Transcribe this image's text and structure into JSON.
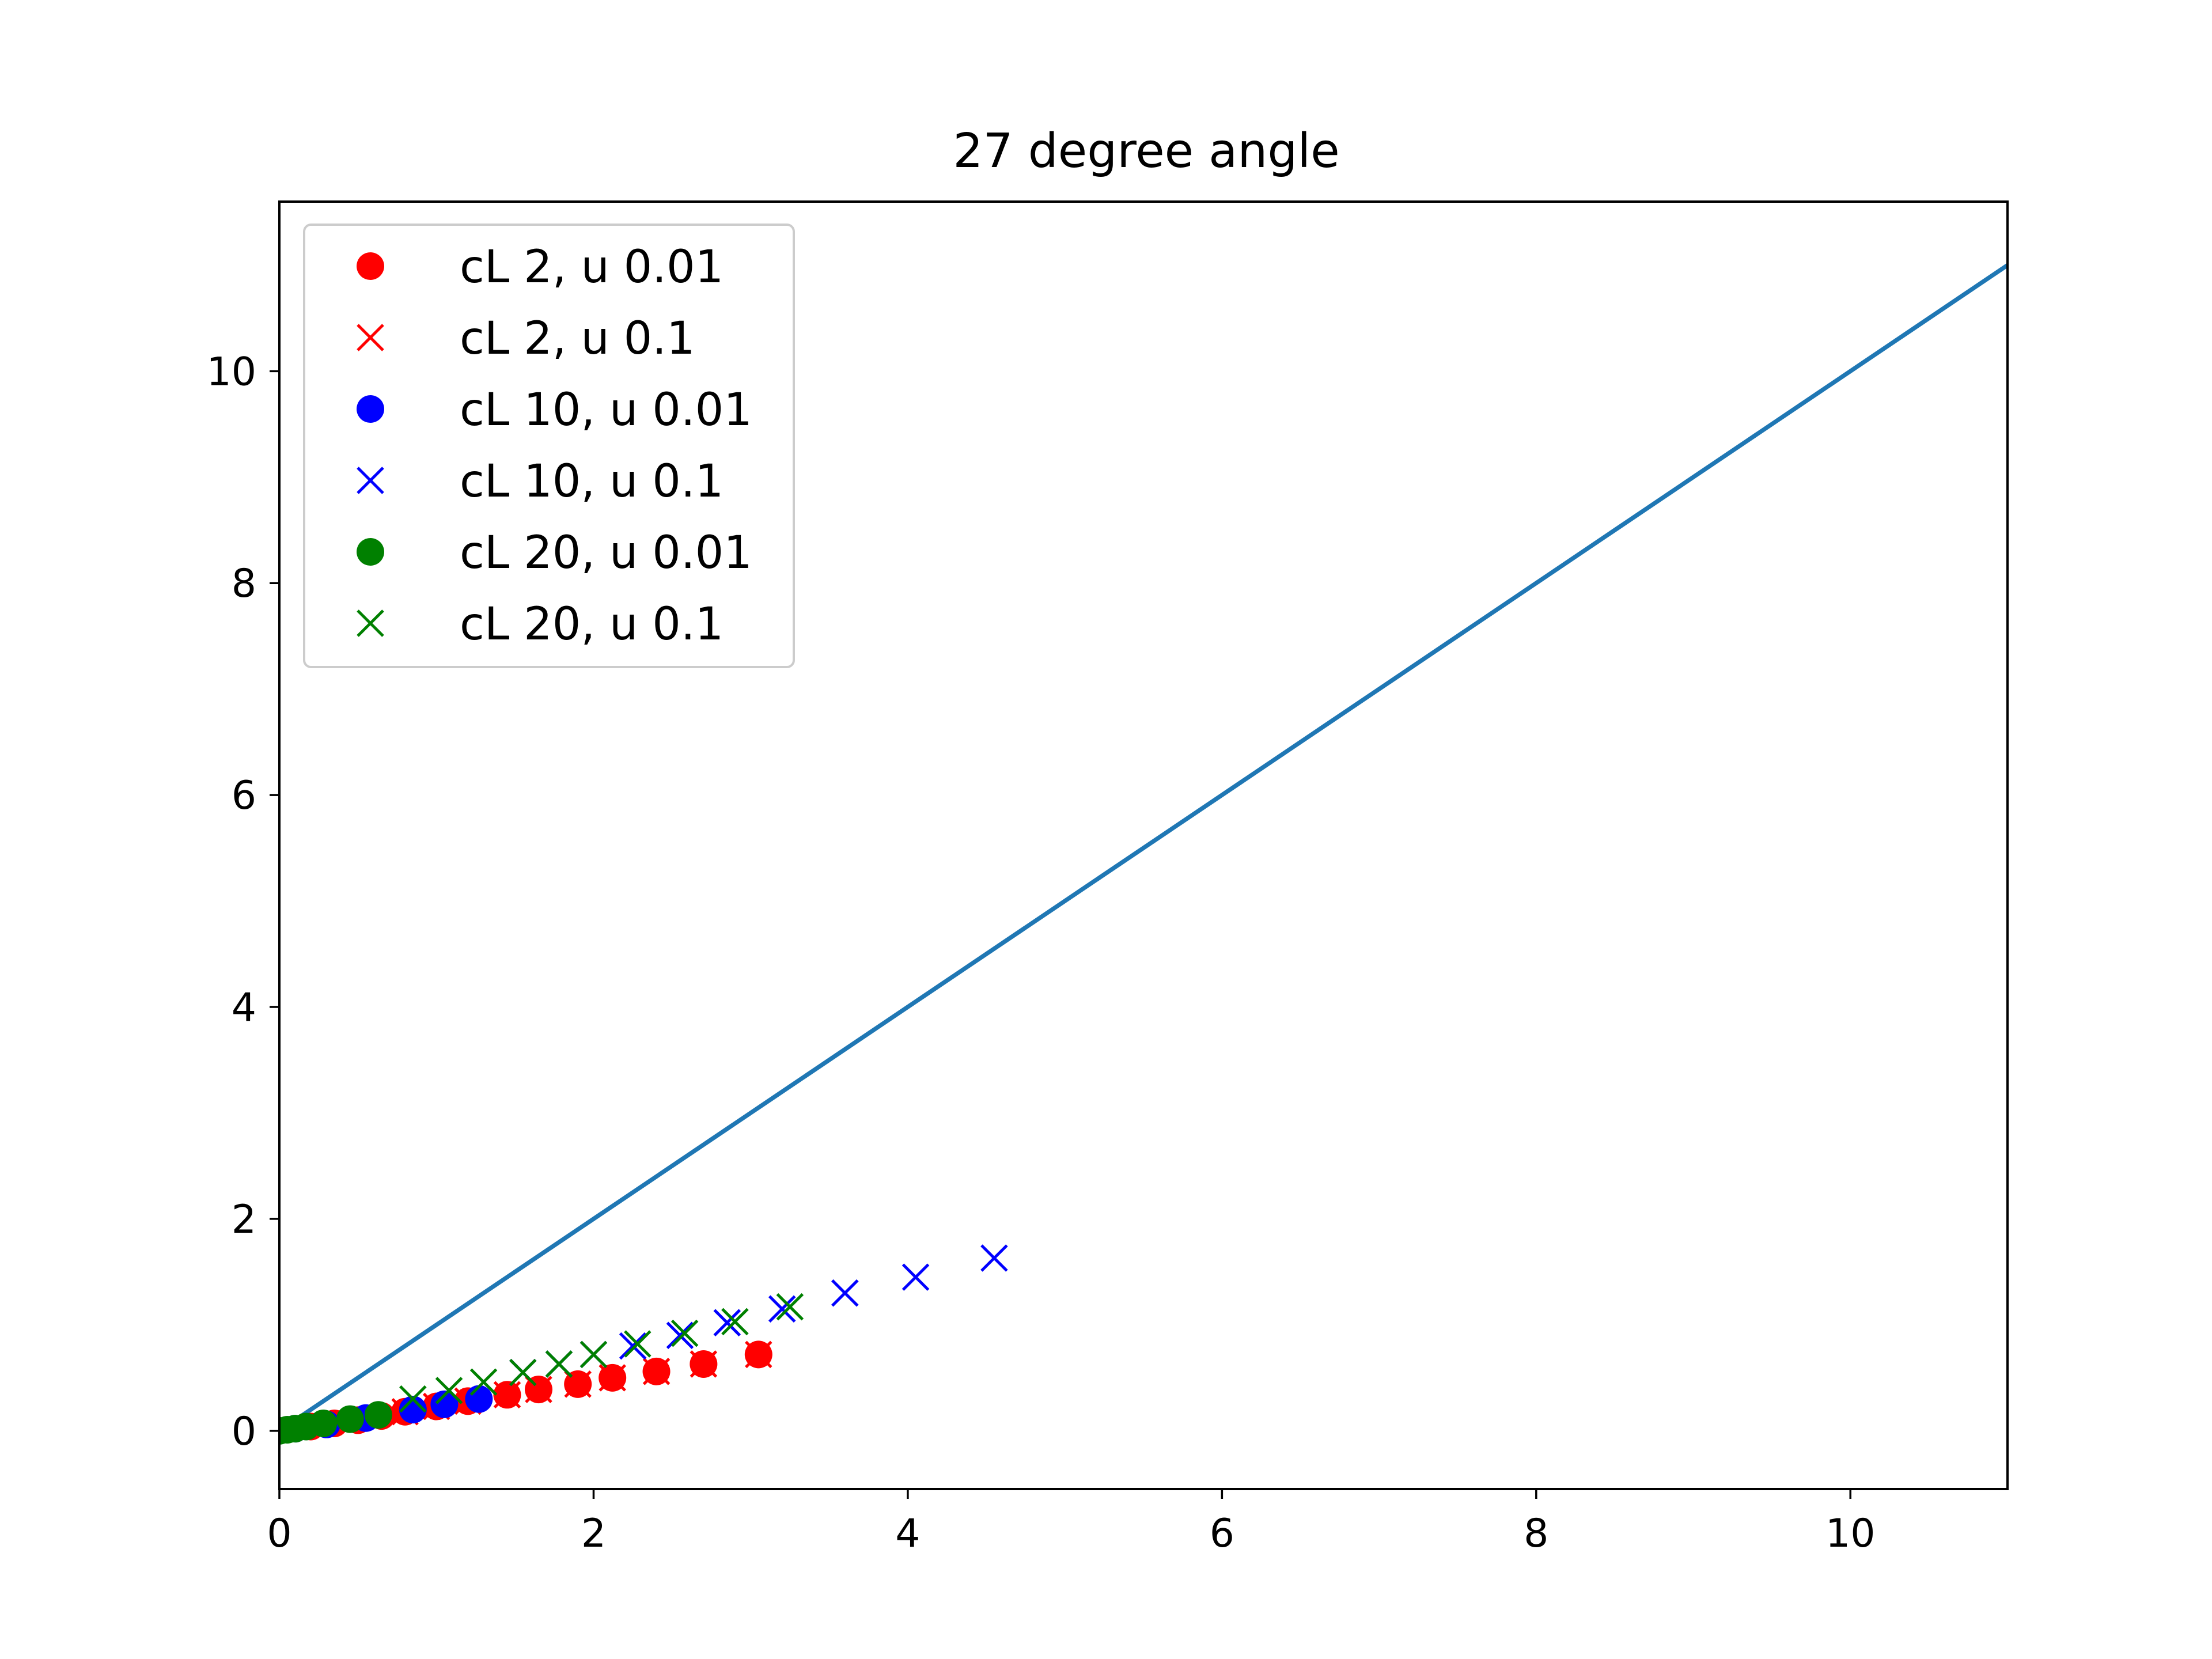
{
  "chart_data": {
    "type": "scatter",
    "title": "27 degree angle",
    "xlabel": "",
    "ylabel": "",
    "xlim": [
      0,
      11
    ],
    "ylim": [
      -0.55,
      11.6
    ],
    "xticks": [
      0,
      2,
      4,
      6,
      8,
      10
    ],
    "yticks": [
      0,
      2,
      4,
      6,
      8,
      10
    ],
    "grid": false,
    "legend_position": "upper-left",
    "reference_line": {
      "color": "#1f77b4",
      "x": [
        0,
        11
      ],
      "y": [
        0,
        11
      ]
    },
    "series": [
      {
        "name": "cL 2, u 0.01",
        "marker": "circle",
        "color": "#ff0000",
        "x": [
          0.2,
          0.35,
          0.5,
          0.65,
          0.8,
          1.0,
          1.2,
          1.45,
          1.65,
          1.9,
          2.12,
          2.4,
          2.7,
          3.05
        ],
        "y": [
          0.04,
          0.07,
          0.1,
          0.14,
          0.18,
          0.23,
          0.28,
          0.34,
          0.39,
          0.44,
          0.5,
          0.56,
          0.63,
          0.72
        ]
      },
      {
        "name": "cL 2, u 0.1",
        "marker": "x",
        "color": "#ff0000",
        "x": [
          0.8,
          1.0,
          1.2,
          1.45,
          1.65,
          1.9,
          2.12,
          2.4,
          2.7,
          3.05
        ],
        "y": [
          0.18,
          0.23,
          0.28,
          0.34,
          0.39,
          0.44,
          0.5,
          0.56,
          0.63,
          0.72
        ]
      },
      {
        "name": "cL 10, u 0.01",
        "marker": "circle",
        "color": "#0000ff",
        "x": [
          0.1,
          0.3,
          0.55,
          0.85,
          1.05,
          1.27
        ],
        "y": [
          0.02,
          0.06,
          0.12,
          0.2,
          0.25,
          0.3
        ]
      },
      {
        "name": "cL 10, u 0.1",
        "marker": "x",
        "color": "#0000ff",
        "x": [
          1.55,
          1.78,
          2.0,
          2.25,
          2.55,
          2.85,
          3.2,
          3.6,
          4.05,
          4.55
        ],
        "y": [
          0.55,
          0.63,
          0.72,
          0.8,
          0.9,
          1.02,
          1.15,
          1.3,
          1.45,
          1.63
        ]
      },
      {
        "name": "cL 20, u 0.01",
        "marker": "circle",
        "color": "#008000",
        "x": [
          0.0,
          0.05,
          0.1,
          0.17,
          0.28,
          0.45,
          0.63
        ],
        "y": [
          0.0,
          0.01,
          0.02,
          0.04,
          0.07,
          0.11,
          0.15
        ]
      },
      {
        "name": "cL 20, u 0.1",
        "marker": "x",
        "color": "#008000",
        "x": [
          0.85,
          1.08,
          1.3,
          1.55,
          1.78,
          2.0,
          2.28,
          2.58,
          2.9,
          3.25
        ],
        "y": [
          0.3,
          0.38,
          0.46,
          0.55,
          0.63,
          0.72,
          0.82,
          0.92,
          1.03,
          1.17
        ]
      }
    ]
  }
}
